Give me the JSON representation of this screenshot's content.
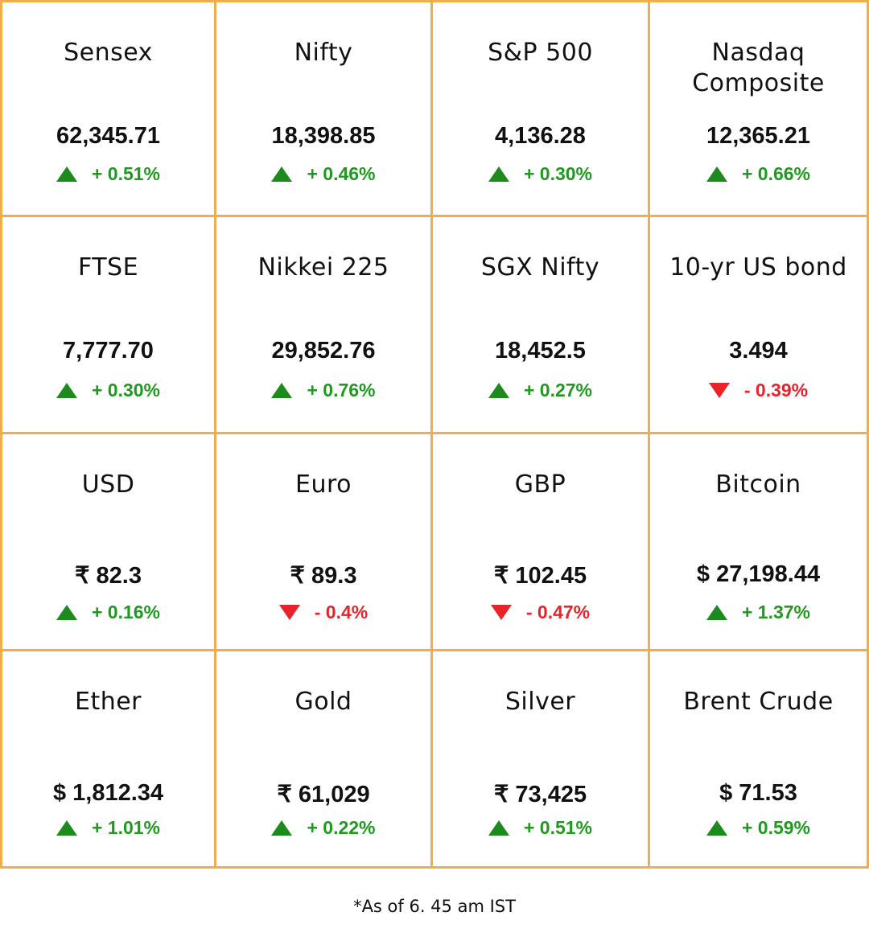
{
  "colors": {
    "border": "#f0ad4e",
    "up": "#1f9a1f",
    "down": "#e8232a"
  },
  "icons": {
    "up": "triangle-up-icon",
    "down": "triangle-down-icon"
  },
  "tiles": [
    {
      "name": "Sensex",
      "value": "62,345.71",
      "change": "+ 0.51%",
      "direction": "up"
    },
    {
      "name": "Nifty",
      "value": "18,398.85",
      "change": "+ 0.46%",
      "direction": "up"
    },
    {
      "name": "S&P 500",
      "value": "4,136.28",
      "change": "+ 0.30%",
      "direction": "up"
    },
    {
      "name": "Nasdaq Composite",
      "value": "12,365.21",
      "change": "+ 0.66%",
      "direction": "up"
    },
    {
      "name": "FTSE",
      "value": "7,777.70",
      "change": "+ 0.30%",
      "direction": "up"
    },
    {
      "name": "Nikkei 225",
      "value": "29,852.76",
      "change": "+ 0.76%",
      "direction": "up"
    },
    {
      "name": "SGX Nifty",
      "value": "18,452.5",
      "change": "+ 0.27%",
      "direction": "up"
    },
    {
      "name": "10-yr US bond",
      "value": "3.494",
      "change": "- 0.39%",
      "direction": "down"
    },
    {
      "name": "USD",
      "value": "₹ 82.3",
      "change": "+ 0.16%",
      "direction": "up"
    },
    {
      "name": "Euro",
      "value": "₹ 89.3",
      "change": "- 0.4%",
      "direction": "down"
    },
    {
      "name": "GBP",
      "value": "₹ 102.45",
      "change": "- 0.47%",
      "direction": "down"
    },
    {
      "name": "Bitcoin",
      "value": "$ 27,198.44",
      "change": "+ 1.37%",
      "direction": "up"
    },
    {
      "name": "Ether",
      "value": "$ 1,812.34",
      "change": "+ 1.01%",
      "direction": "up"
    },
    {
      "name": "Gold",
      "value": "₹ 61,029",
      "change": "+ 0.22%",
      "direction": "up"
    },
    {
      "name": "Silver",
      "value": "₹ 73,425",
      "change": "+ 0.51%",
      "direction": "up"
    },
    {
      "name": "Brent Crude",
      "value": "$ 71.53",
      "change": "+ 0.59%",
      "direction": "up"
    }
  ],
  "footnote": "*As of 6. 45 am IST"
}
